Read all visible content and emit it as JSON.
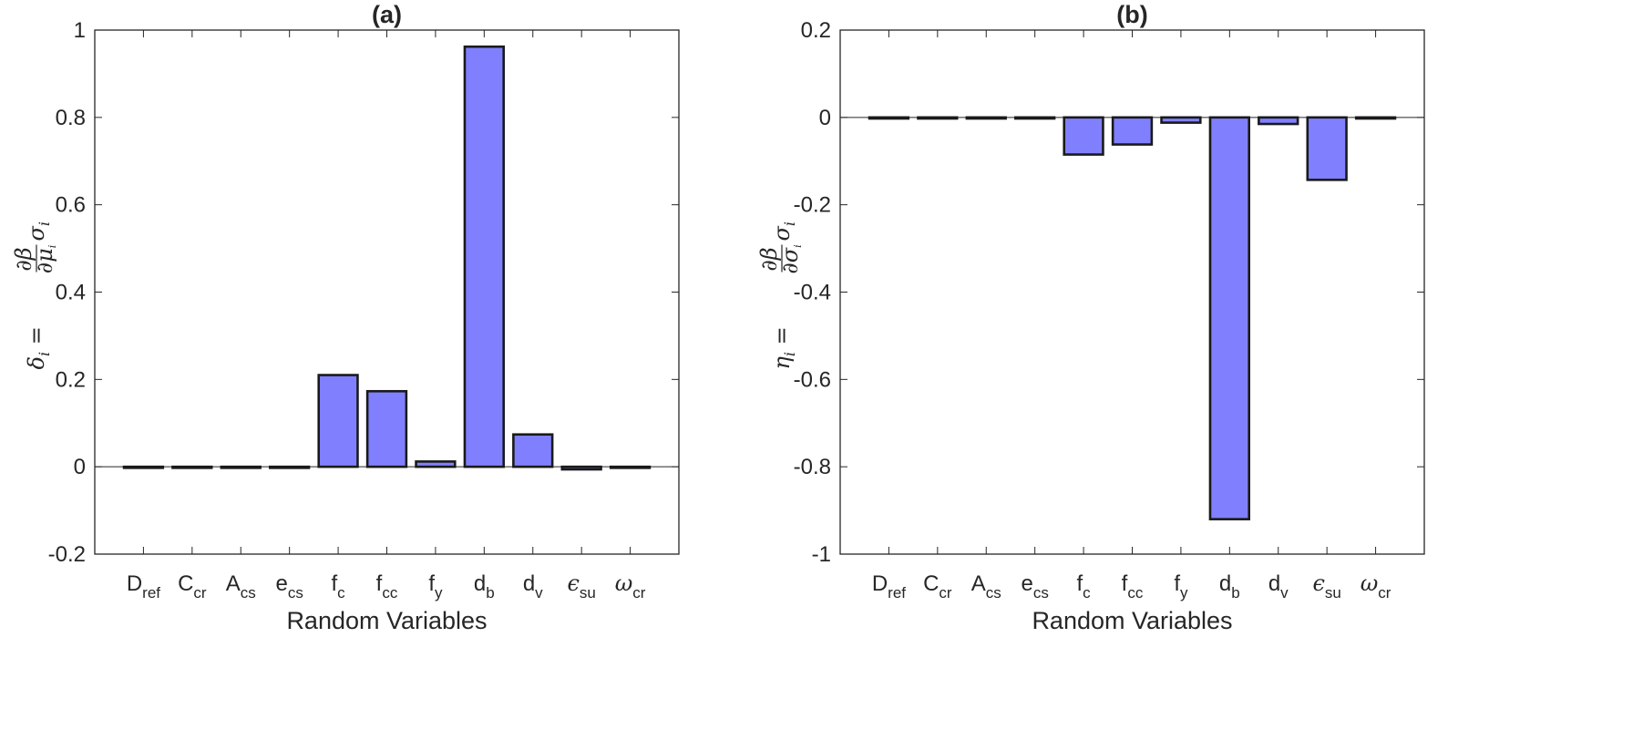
{
  "figure": {
    "bar_color": "#8080ff",
    "edge_color": "#1a1a1a"
  },
  "chart_data": [
    {
      "type": "bar",
      "title": "(a)",
      "xlabel": "Random Variables",
      "ylabel": "δi = (∂β/∂μi) σi",
      "ylabel_parts": {
        "lhs": "δ",
        "lhs_sub": "i",
        "eq": "=",
        "frac_num": "∂β",
        "frac_den": "∂μ",
        "frac_den_sub": "i",
        "rhs": "σ",
        "rhs_sub": "i"
      },
      "categories": [
        {
          "base": "D",
          "sub": "ref"
        },
        {
          "base": "C",
          "sub": "cr"
        },
        {
          "base": "A",
          "sub": "cs"
        },
        {
          "base": "e",
          "sub": "cs"
        },
        {
          "base": "f",
          "sub": "c"
        },
        {
          "base": "f",
          "sub": "cc"
        },
        {
          "base": "f",
          "sub": "y"
        },
        {
          "base": "d",
          "sub": "b"
        },
        {
          "base": "d",
          "sub": "v"
        },
        {
          "base": "ϵ",
          "sub": "su"
        },
        {
          "base": "ω",
          "sub": "cr"
        }
      ],
      "values": [
        0.0,
        0.0,
        0.0,
        0.0,
        0.21,
        0.173,
        0.012,
        0.962,
        0.074,
        -0.006,
        0.0
      ],
      "ylim": [
        -0.2,
        1
      ],
      "yticks": [
        -0.2,
        0,
        0.2,
        0.4,
        0.6,
        0.8,
        1
      ],
      "ytick_labels": [
        "-0.2",
        "0",
        "0.2",
        "0.4",
        "0.6",
        "0.8",
        "1"
      ],
      "grid": false
    },
    {
      "type": "bar",
      "title": "(b)",
      "xlabel": "Random Variables",
      "ylabel": "ηi = (∂β/∂σi) σi",
      "ylabel_parts": {
        "lhs": "η",
        "lhs_sub": "i",
        "eq": "=",
        "frac_num": "∂β",
        "frac_den": "∂σ",
        "frac_den_sub": "i",
        "rhs": "σ",
        "rhs_sub": "i"
      },
      "categories": [
        {
          "base": "D",
          "sub": "ref"
        },
        {
          "base": "C",
          "sub": "cr"
        },
        {
          "base": "A",
          "sub": "cs"
        },
        {
          "base": "e",
          "sub": "cs"
        },
        {
          "base": "f",
          "sub": "c"
        },
        {
          "base": "f",
          "sub": "cc"
        },
        {
          "base": "f",
          "sub": "y"
        },
        {
          "base": "d",
          "sub": "b"
        },
        {
          "base": "d",
          "sub": "v"
        },
        {
          "base": "ϵ",
          "sub": "su"
        },
        {
          "base": "ω",
          "sub": "cr"
        }
      ],
      "values": [
        0.0,
        0.0,
        0.0,
        0.0,
        -0.085,
        -0.062,
        -0.012,
        -0.92,
        -0.015,
        -0.143,
        0.0
      ],
      "ylim": [
        -1,
        0.2
      ],
      "yticks": [
        -1,
        -0.8,
        -0.6,
        -0.4,
        -0.2,
        0,
        0.2
      ],
      "ytick_labels": [
        "-1",
        "-0.8",
        "-0.6",
        "-0.4",
        "-0.2",
        "0",
        "0.2"
      ],
      "grid": false
    }
  ]
}
